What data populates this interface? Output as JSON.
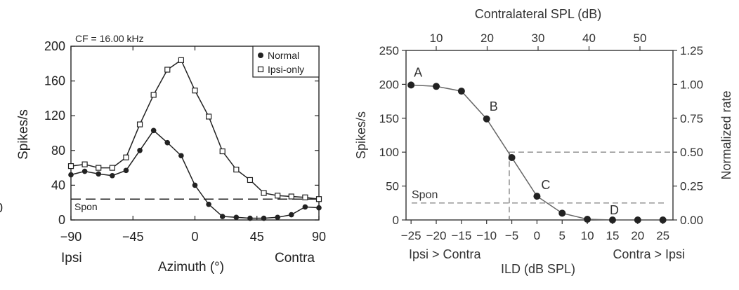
{
  "chart_data": [
    {
      "type": "line",
      "annotation_top": "CF = 16.00 kHz",
      "ylabel": "Spikes/s",
      "xlabel": "Azimuth (°)",
      "x_side_labels": {
        "left": "Ipsi",
        "right": "Contra"
      },
      "xlim": [
        -90,
        90
      ],
      "ylim": [
        0,
        200
      ],
      "xticks": [
        -90,
        -45,
        0,
        45,
        90
      ],
      "xtick_labels": [
        "−90",
        "−45",
        "0",
        "45",
        "90"
      ],
      "yticks": [
        0,
        40,
        80,
        120,
        160,
        200
      ],
      "ytick_labels": [
        "0",
        "40",
        "80",
        "120",
        "160",
        "200"
      ],
      "grid": false,
      "legend_position": "top-right",
      "reference_line": {
        "label": "Spon",
        "y": 24,
        "style": "dashed"
      },
      "series": [
        {
          "name": "Normal",
          "marker": "filled-circle",
          "x": [
            -90,
            -80,
            -70,
            -60,
            -50,
            -40,
            -30,
            -20,
            -10,
            0,
            10,
            20,
            30,
            40,
            50,
            60,
            70,
            80,
            90
          ],
          "y": [
            52,
            56,
            53,
            51,
            57,
            80,
            103,
            89,
            74,
            40,
            18,
            4,
            3,
            2,
            2,
            3,
            6,
            15,
            14
          ]
        },
        {
          "name": "Ipsi-only",
          "marker": "open-square",
          "x": [
            -90,
            -80,
            -70,
            -60,
            -50,
            -40,
            -30,
            -20,
            -10,
            0,
            10,
            20,
            30,
            40,
            50,
            60,
            70,
            80,
            90
          ],
          "y": [
            62,
            64,
            60,
            60,
            72,
            110,
            144,
            173,
            184,
            149,
            119,
            79,
            58,
            46,
            31,
            28,
            27,
            26,
            24
          ]
        }
      ]
    },
    {
      "type": "line",
      "ylabel": "Spikes/s",
      "ylabel_right": "Normalized rate",
      "xlabel": "ILD (dB SPL)",
      "xlabel_top": "Contralateral SPL (dB)",
      "x_side_labels": {
        "left": "Ipsi > Contra",
        "right": "Contra > Ipsi"
      },
      "xlim": [
        -26,
        27
      ],
      "ylim": [
        0,
        250
      ],
      "xticks": [
        -25,
        -20,
        -15,
        -10,
        -5,
        0,
        5,
        10,
        15,
        20,
        25
      ],
      "xtick_labels": [
        "−25",
        "−20",
        "−15",
        "−10",
        "−5",
        "0",
        "5",
        "10",
        "15",
        "20",
        "25"
      ],
      "yticks": [
        0,
        50,
        100,
        150,
        200,
        250
      ],
      "ytick_labels": [
        "0",
        "50",
        "100",
        "150",
        "200",
        "250"
      ],
      "top_ticks": [
        10,
        20,
        30,
        40,
        50
      ],
      "top_tick_labels": [
        "10",
        "20",
        "30",
        "40",
        "50"
      ],
      "right_ticks": [
        0,
        0.25,
        0.5,
        0.75,
        1.0,
        1.25
      ],
      "right_tick_labels": [
        "0.00",
        "0.25",
        "0.50",
        "0.75",
        "1.00",
        "1.25"
      ],
      "grid": false,
      "reference_line": {
        "label": "Spon",
        "y": 25,
        "style": "dashed"
      },
      "half_max_guides": {
        "ild": -5.5,
        "normalized_rate": 0.5,
        "style": "dashed"
      },
      "series": [
        {
          "marker": "filled-circle",
          "x": [
            -25,
            -20,
            -15,
            -10,
            -5,
            0,
            5,
            10,
            15,
            20,
            25
          ],
          "y": [
            199,
            197,
            190,
            149,
            92,
            35,
            10,
            1,
            0,
            0,
            0
          ]
        }
      ],
      "point_labels": [
        {
          "text": "A",
          "x": -25,
          "y": 199
        },
        {
          "text": "B",
          "x": -10,
          "y": 149
        },
        {
          "text": "C",
          "x": 0,
          "y": 35
        },
        {
          "text": "D",
          "x": 15,
          "y": 0
        }
      ]
    }
  ],
  "edge_fragment": "0"
}
